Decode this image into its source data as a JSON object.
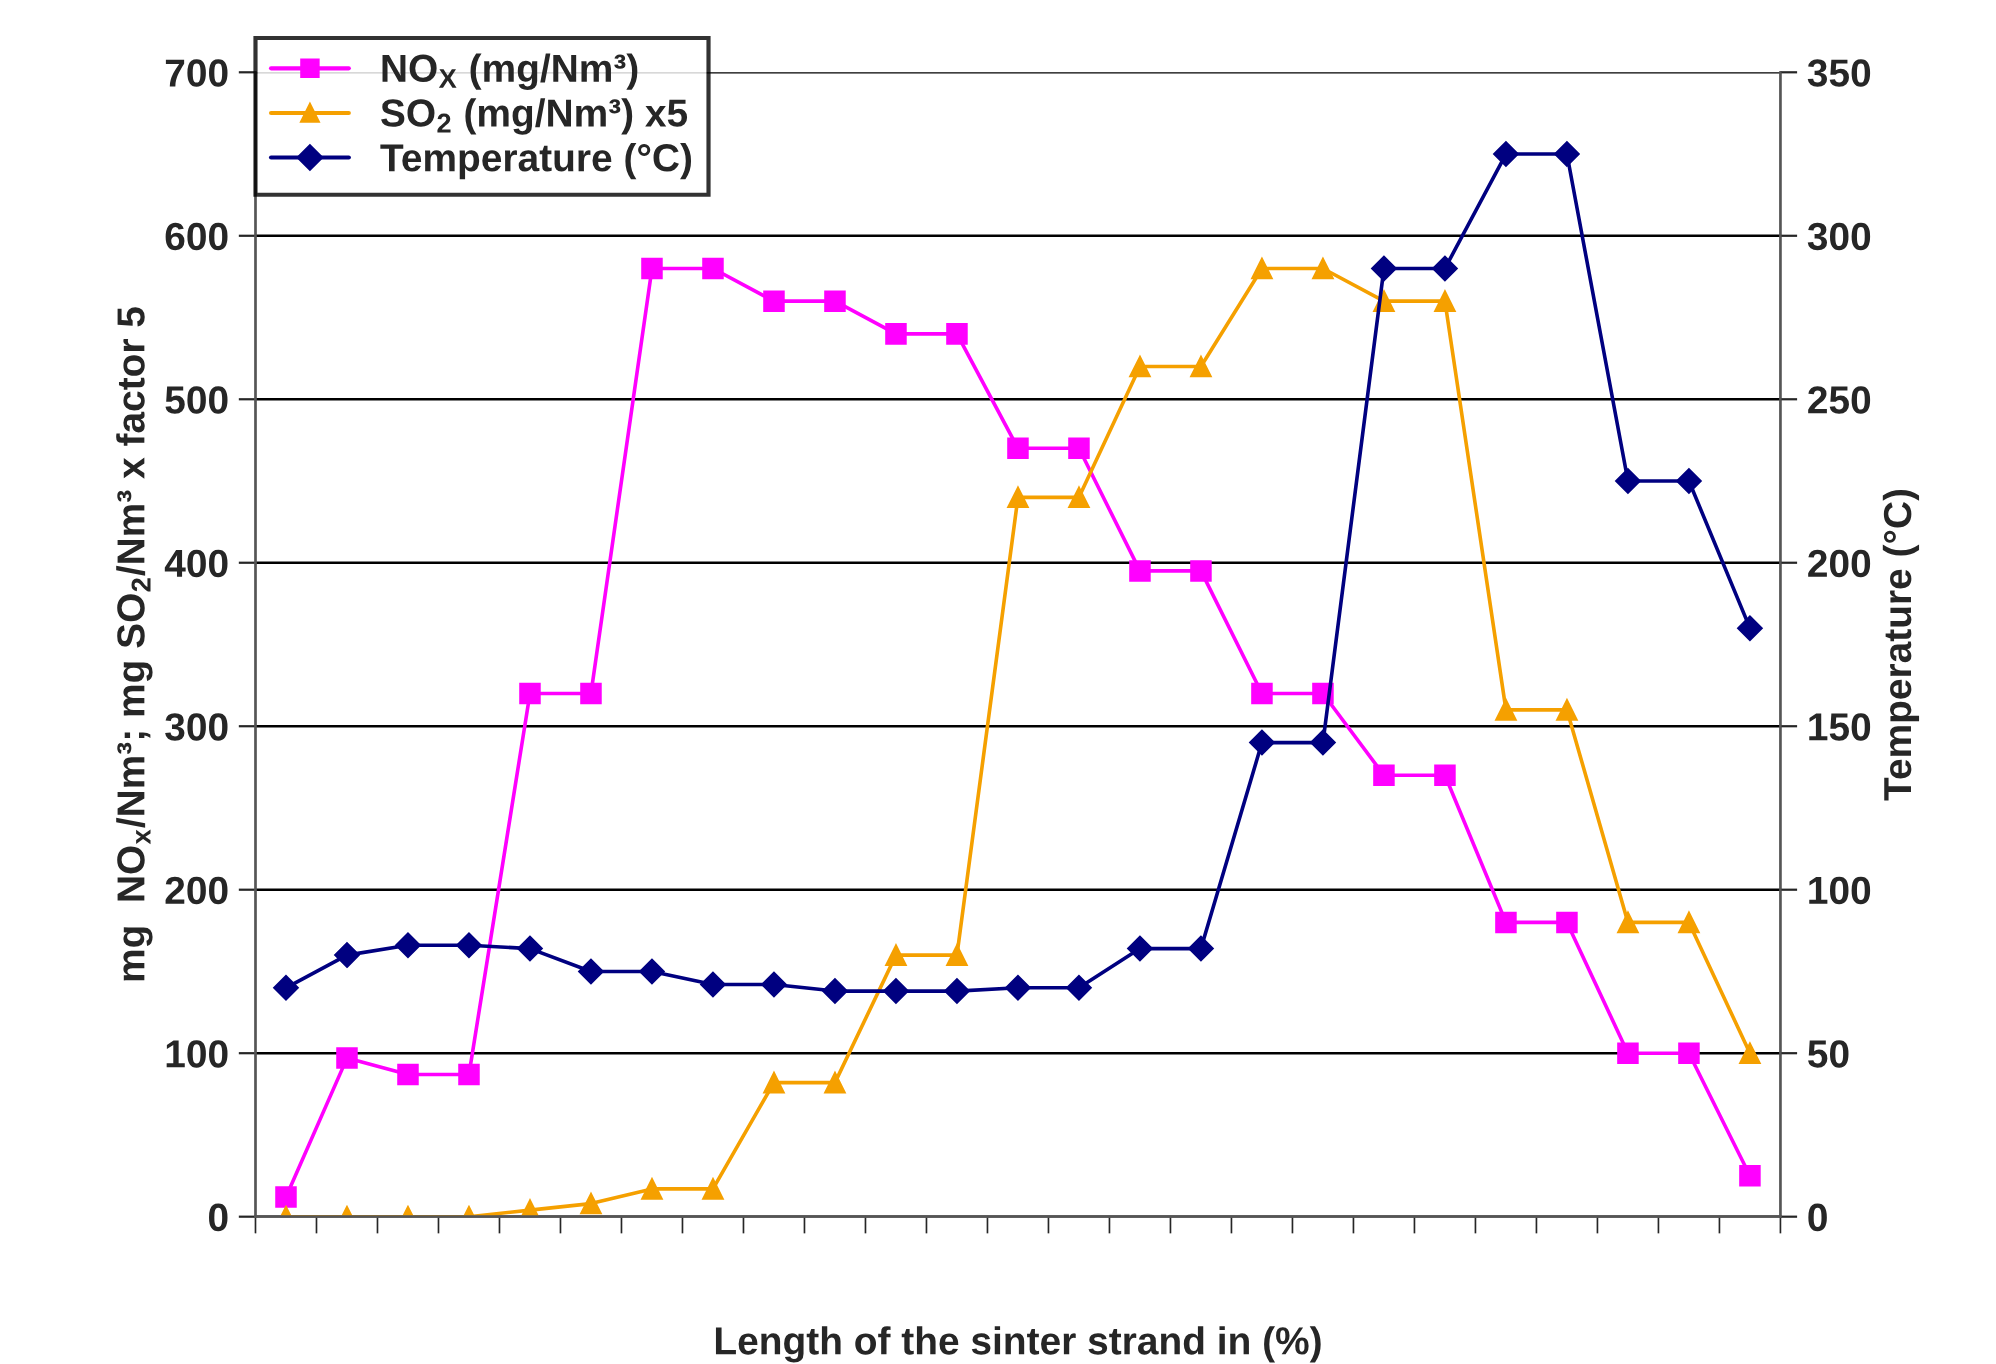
{
  "chart_data": {
    "type": "line",
    "xlabel": "Length of the sinter strand in (%)",
    "ylabel": "mg  NO$_{x}$/Nm³; mg SO$_{2}$/Nm³ x factor 5",
    "y2label": "Temperature (°C)",
    "categories": [
      null,
      null,
      null,
      null,
      null,
      null,
      null,
      null,
      null,
      null,
      null,
      null,
      null,
      null,
      null,
      null,
      null,
      null,
      null,
      null,
      null,
      null,
      null,
      null,
      null
    ],
    "series": [
      {
        "name": "NO$_{X}$ (mg/Nm³)",
        "color": "#ff00ff",
        "marker": "square",
        "values": [
          12,
          97,
          87,
          87,
          320,
          320,
          580,
          580,
          560,
          560,
          540,
          540,
          470,
          470,
          395,
          395,
          320,
          320,
          270,
          270,
          180,
          180,
          100,
          100,
          25
        ]
      },
      {
        "name": "SO$_{2}$ (mg/Nm³) x5",
        "color": "#f5a000",
        "marker": "triangle",
        "values": [
          0,
          0,
          0,
          0,
          4,
          8,
          17,
          17,
          82,
          82,
          160,
          160,
          440,
          440,
          520,
          520,
          580,
          580,
          560,
          560,
          310,
          310,
          180,
          180,
          100
        ]
      },
      {
        "name": "Temperature (°C)",
        "color": "#000080",
        "marker": "diamond",
        "axis": "y2",
        "values": [
          70,
          80,
          83,
          83,
          82,
          75,
          75,
          71,
          71,
          69,
          69,
          69,
          70,
          70,
          82,
          82,
          145,
          145,
          290,
          290,
          325,
          325,
          225,
          225,
          180
        ]
      }
    ],
    "ylim": [
      0,
      700
    ],
    "yticks": [
      0,
      100,
      200,
      300,
      400,
      500,
      600,
      700
    ],
    "y2lim": [
      0,
      350
    ],
    "y2ticks": [
      0,
      50,
      100,
      150,
      200,
      250,
      300,
      350
    ],
    "grid": "y",
    "legend": "top left",
    "line_style": "solid"
  }
}
